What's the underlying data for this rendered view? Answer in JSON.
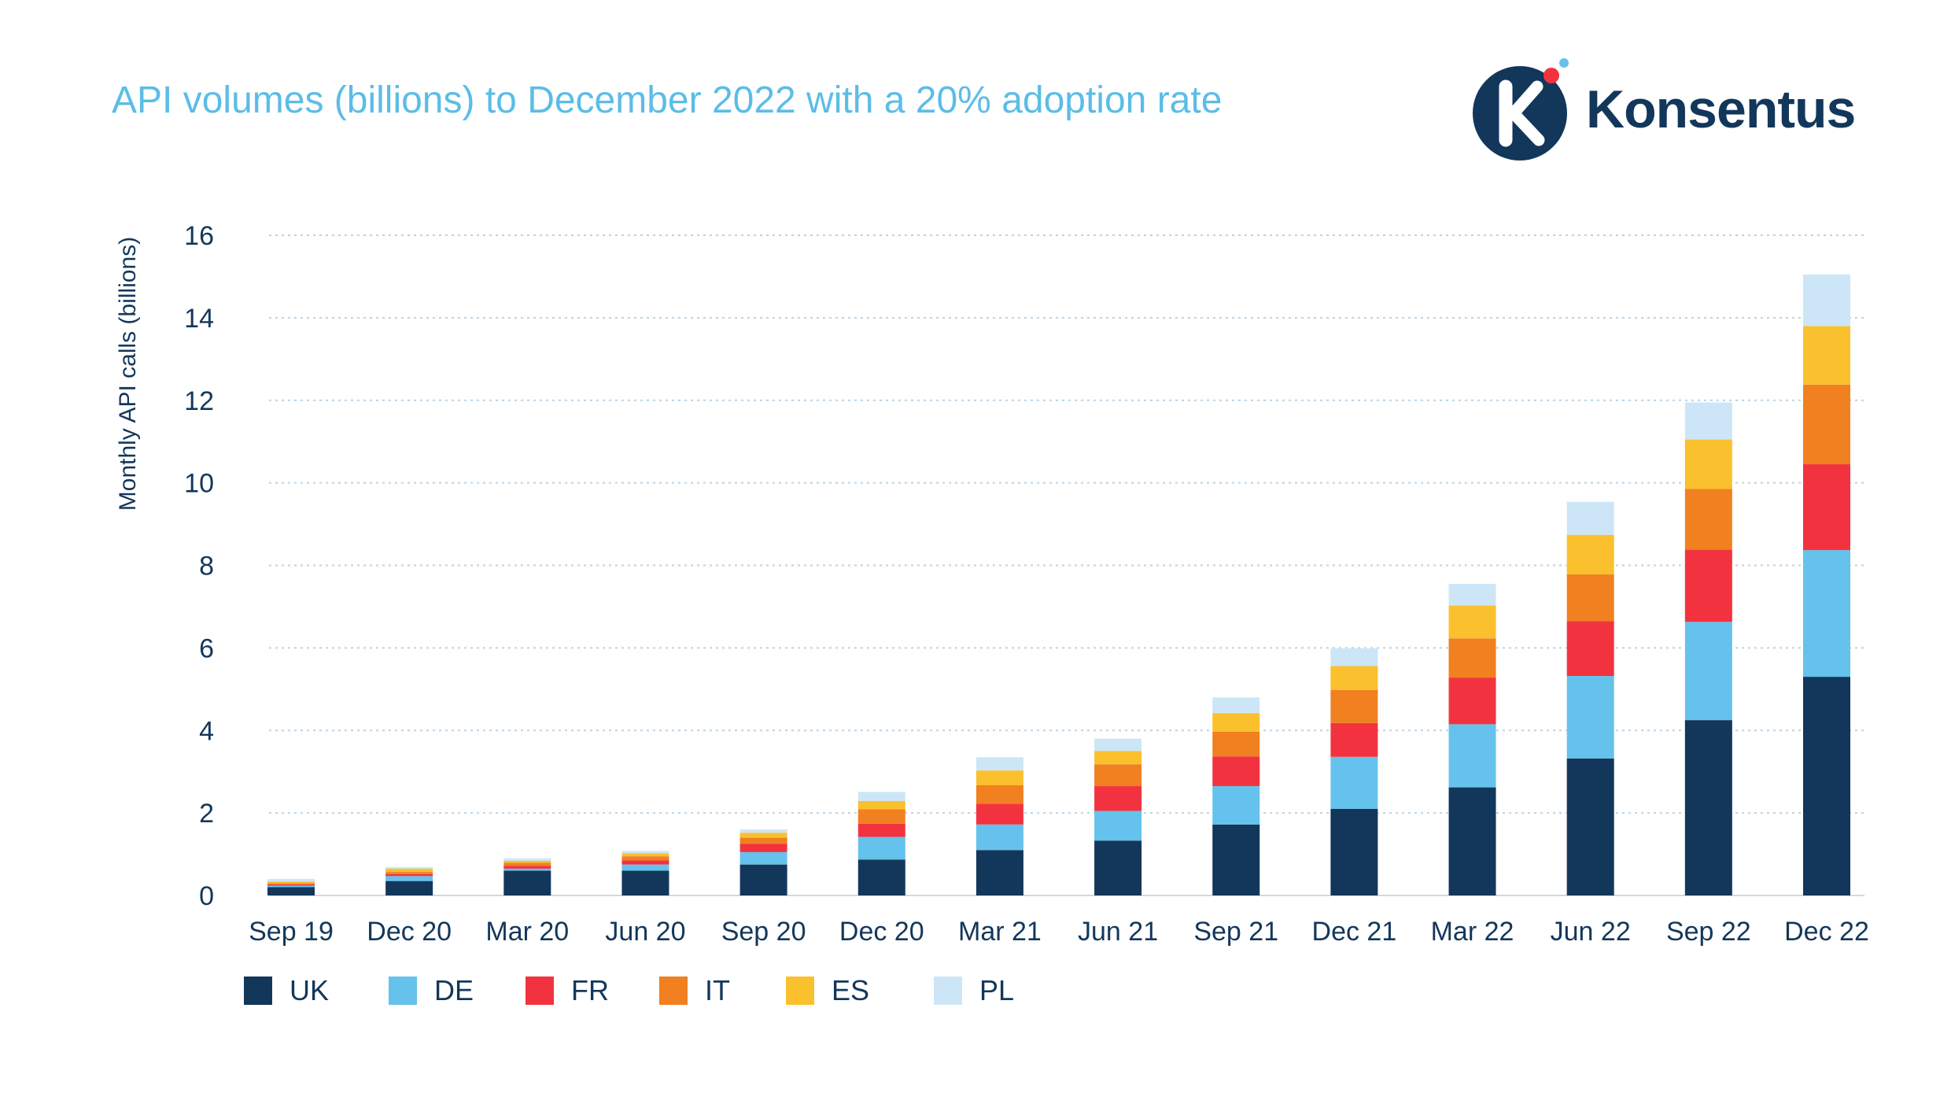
{
  "title": "API volumes (billions) to December 2022 with a 20% adoption rate",
  "logo": {
    "text": "Konsentus",
    "icon": "konsentus-k-logo-icon"
  },
  "chart_data": {
    "type": "bar",
    "stacked": true,
    "title": "API volumes (billions) to December 2022 with a 20% adoption rate",
    "xlabel": "",
    "ylabel": "Monthly API calls (billions)",
    "ylim": [
      0,
      16
    ],
    "yticks": [
      0,
      2,
      4,
      6,
      8,
      10,
      12,
      14,
      16
    ],
    "grid": true,
    "legend_position": "bottom-left",
    "categories": [
      "Sep 19",
      "Dec 20",
      "Mar 20",
      "Jun 20",
      "Sep 20",
      "Dec 20",
      "Mar 21",
      "Jun 21",
      "Sep 21",
      "Dec 21",
      "Mar 22",
      "Jun 22",
      "Sep 22",
      "Dec 22"
    ],
    "series": [
      {
        "name": "UK",
        "color": "#13375b",
        "values": [
          0.2,
          0.35,
          0.6,
          0.6,
          0.75,
          0.87,
          1.1,
          1.33,
          1.72,
          2.1,
          2.62,
          3.32,
          4.25,
          5.3
        ]
      },
      {
        "name": "DE",
        "color": "#65c2ec",
        "values": [
          0.04,
          0.12,
          0.05,
          0.15,
          0.3,
          0.55,
          0.62,
          0.72,
          0.93,
          1.26,
          1.53,
          2.0,
          2.38,
          3.07
        ]
      },
      {
        "name": "FR",
        "color": "#f2333f",
        "values": [
          0.03,
          0.05,
          0.07,
          0.1,
          0.2,
          0.32,
          0.5,
          0.6,
          0.72,
          0.82,
          1.13,
          1.33,
          1.75,
          2.08
        ]
      },
      {
        "name": "IT",
        "color": "#f08020",
        "values": [
          0.03,
          0.05,
          0.07,
          0.1,
          0.15,
          0.35,
          0.45,
          0.53,
          0.6,
          0.8,
          0.95,
          1.13,
          1.47,
          1.93
        ]
      },
      {
        "name": "ES",
        "color": "#fbc02d",
        "values": [
          0.04,
          0.08,
          0.05,
          0.07,
          0.12,
          0.2,
          0.36,
          0.32,
          0.45,
          0.58,
          0.8,
          0.96,
          1.2,
          1.42
        ]
      },
      {
        "name": "PL",
        "color": "#cde6f7",
        "values": [
          0.06,
          0.04,
          0.06,
          0.06,
          0.08,
          0.22,
          0.32,
          0.3,
          0.38,
          0.43,
          0.52,
          0.8,
          0.9,
          1.25
        ]
      }
    ]
  }
}
